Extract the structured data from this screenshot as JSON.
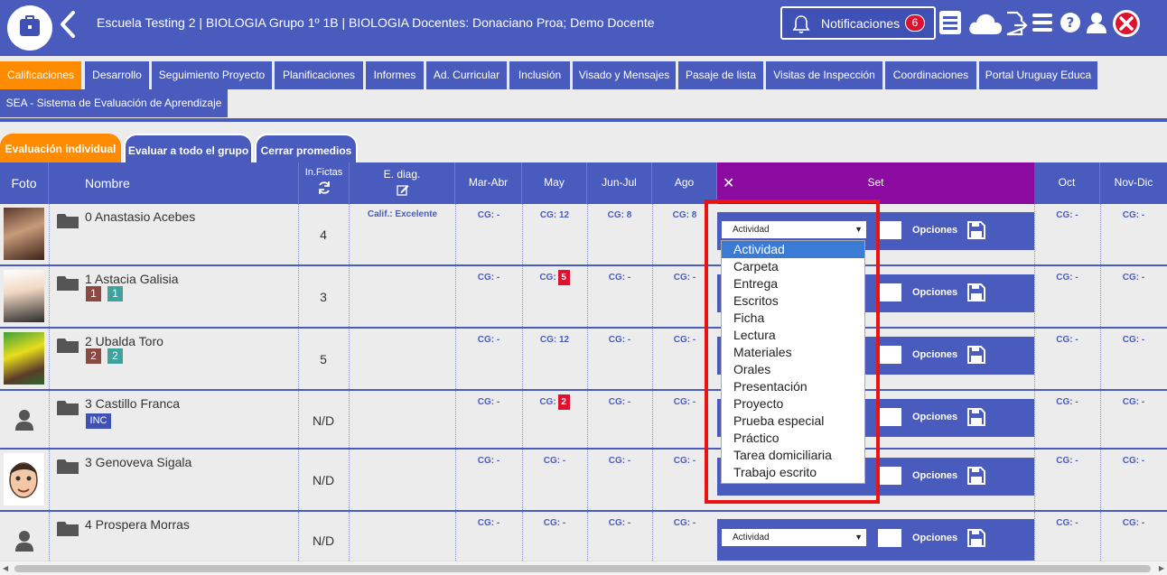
{
  "header": {
    "title": "Escuela Testing 2 | BIOLOGIA Grupo 1º 1B | BIOLOGIA Docentes: Donaciano Proa; Demo Docente",
    "notifications_label": "Notificaciones",
    "notifications_count": "6",
    "icons": [
      "briefcase-icon",
      "back-arrow-icon",
      "bell-icon",
      "list-icon",
      "cloud-icon",
      "export-icon",
      "menu-icon",
      "help-icon",
      "user-icon",
      "close-icon"
    ]
  },
  "tabs": [
    {
      "label": "Calificaciones"
    },
    {
      "label": "Desarrollo"
    },
    {
      "label": "Seguimiento Proyecto"
    },
    {
      "label": "Planificaciones"
    },
    {
      "label": "Informes"
    },
    {
      "label": "Ad. Curricular"
    },
    {
      "label": "Inclusión"
    },
    {
      "label": "Visado y Mensajes"
    },
    {
      "label": "Pasaje de lista"
    },
    {
      "label": "Visitas de Inspección"
    },
    {
      "label": "Coordinaciones"
    },
    {
      "label": "Portal Uruguay Educa"
    },
    {
      "label": "SEA - Sistema de Evaluación de Aprendizaje"
    }
  ],
  "subtabs": [
    {
      "label": "Evaluación individual"
    },
    {
      "label": "Evaluar a todo el grupo"
    },
    {
      "label": "Cerrar promedios"
    }
  ],
  "columns": {
    "foto": "Foto",
    "nombre": "Nombre",
    "infictas": "In.Fictas",
    "ediag": "E. diag.",
    "marabr": "Mar-Abr",
    "may": "May",
    "junjul": "Jun-Jul",
    "ago": "Ago",
    "close_x": "✕",
    "set": "Set",
    "oct": "Oct",
    "novdic": "Nov-Dic"
  },
  "rows": [
    {
      "name": "0 Anastasio Acebes",
      "fictas": "4",
      "calif": "Calif.: Excelente",
      "marabr": "CG: -",
      "may": "CG: 12",
      "junjul": "CG: 8",
      "ago": "CG: 8",
      "oct": "CG: -",
      "novdic": "CG: -",
      "select": "Actividad",
      "opciones": "Opciones"
    },
    {
      "name": "1 Astacia Galisia",
      "chip1": "1",
      "chip2": "1",
      "fictas": "3",
      "marabr": "CG: -",
      "may_prefix": "CG:",
      "may_badge": "5",
      "junjul": "CG: -",
      "ago": "CG: -",
      "oct": "CG: -",
      "novdic": "CG: -",
      "opciones": "Opciones"
    },
    {
      "name": "2 Ubalda Toro",
      "chip1": "2",
      "chip2": "2",
      "fictas": "5",
      "marabr": "CG: -",
      "may": "CG: 12",
      "junjul": "CG: -",
      "ago": "CG: -",
      "oct": "CG: -",
      "novdic": "CG: -",
      "opciones": "Opciones"
    },
    {
      "name": "3 Castillo Franca",
      "chip": "INC",
      "fictas": "N/D",
      "marabr": "CG: -",
      "may_prefix": "CG:",
      "may_badge": "2",
      "junjul": "CG: -",
      "ago": "CG: -",
      "oct": "CG: -",
      "novdic": "CG: -",
      "opciones": "Opciones"
    },
    {
      "name": "3 Genoveva Sigala",
      "fictas": "N/D",
      "marabr": "CG: -",
      "may": "CG: -",
      "junjul": "CG: -",
      "ago": "CG: -",
      "oct": "CG: -",
      "novdic": "CG: -",
      "opciones": "Opciones"
    },
    {
      "name": "4 Prospera Morras",
      "fictas": "N/D",
      "marabr": "CG: -",
      "may": "CG: -",
      "junjul": "CG: -",
      "ago": "CG: -",
      "oct": "CG: -",
      "novdic": "CG: -",
      "select": "Actividad",
      "opciones": "Opciones"
    }
  ],
  "dropdown": {
    "options": [
      "Actividad",
      "Carpeta",
      "Entrega",
      "Escritos",
      "Ficha",
      "Lectura",
      "Materiales",
      "Orales",
      "Presentación",
      "Proyecto",
      "Prueba especial",
      "Práctico",
      "Tarea domiciliaria",
      "Trabajo escrito"
    ],
    "highlighted": "Actividad"
  },
  "colors": {
    "primary": "#4a5bbe",
    "active_tab": "#ff8c00",
    "set_column": "#8b0aa0",
    "badge_red": "#e0102f",
    "highlight_box": "#ea1313"
  }
}
